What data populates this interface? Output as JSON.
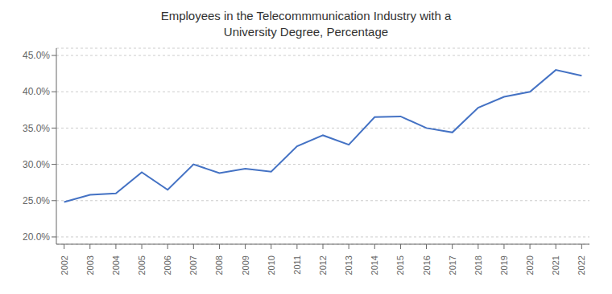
{
  "chart_data": {
    "type": "line",
    "title": "Employees in the Telecommmunication Industry with a\nUniversity Degree, Percentage",
    "x": [
      2002,
      2003,
      2004,
      2005,
      2006,
      2007,
      2008,
      2009,
      2010,
      2011,
      2012,
      2013,
      2014,
      2015,
      2016,
      2017,
      2018,
      2019,
      2020,
      2021,
      2022
    ],
    "values": [
      0.248,
      0.258,
      0.26,
      0.289,
      0.265,
      0.3,
      0.288,
      0.294,
      0.29,
      0.325,
      0.34,
      0.327,
      0.365,
      0.366,
      0.35,
      0.344,
      0.378,
      0.393,
      0.4,
      0.43,
      0.422
    ],
    "color": "#4472C4",
    "xlim": [
      2001.7,
      2022.3
    ],
    "xticks": [
      2002,
      2003,
      2004,
      2005,
      2006,
      2007,
      2008,
      2009,
      2010,
      2011,
      2012,
      2013,
      2014,
      2015,
      2016,
      2017,
      2018,
      2019,
      2020,
      2021,
      2022
    ],
    "ylim": [
      0.19,
      0.46
    ],
    "yticks": [
      {
        "value": 0.2,
        "label": "20.0%"
      },
      {
        "value": 0.25,
        "label": "25.0%"
      },
      {
        "value": 0.3,
        "label": "30.0%"
      },
      {
        "value": 0.35,
        "label": "35.0%"
      },
      {
        "value": 0.4,
        "label": "40.0%"
      },
      {
        "value": 0.45,
        "label": "45.0%"
      }
    ],
    "grid": true
  }
}
